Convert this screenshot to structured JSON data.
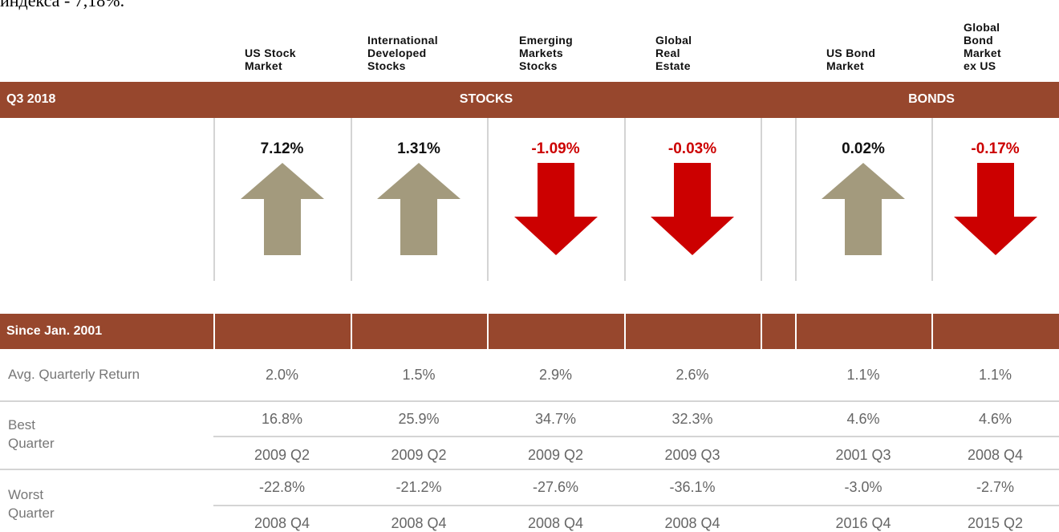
{
  "intro_text": "индекса - 7,18%.",
  "q3_section": {
    "label": "Q3 2018",
    "stocks": "STOCKS",
    "bonds": "BONDS"
  },
  "since_section": {
    "label": "Since Jan. 2001"
  },
  "row_labels": {
    "avg": "Avg. Quarterly Return",
    "best": [
      "Best",
      "Quarter"
    ],
    "worst": [
      "Worst",
      "Quarter"
    ]
  },
  "colors": {
    "header_bar": "#97472d",
    "up": "#a39a7d",
    "down": "#cc0000"
  },
  "columns": [
    {
      "header": [
        "US Stock",
        "Market"
      ],
      "q3": "7.12%",
      "avg": "2.0%",
      "best": "16.8%",
      "best_quarter": "2009 Q2",
      "worst": "-22.8%",
      "worst_quarter": "2008 Q4"
    },
    {
      "header": [
        "International",
        "Developed",
        "Stocks"
      ],
      "q3": "1.31%",
      "avg": "1.5%",
      "best": "25.9%",
      "best_quarter": "2009 Q2",
      "worst": "-21.2%",
      "worst_quarter": "2008 Q4"
    },
    {
      "header": [
        "Emerging",
        "Markets",
        "Stocks"
      ],
      "q3": "-1.09%",
      "avg": "2.9%",
      "best": "34.7%",
      "best_quarter": "2009 Q2",
      "worst": "-27.6%",
      "worst_quarter": "2008 Q4"
    },
    {
      "header": [
        "Global",
        "Real",
        "Estate"
      ],
      "q3": "-0.03%",
      "avg": "2.6%",
      "best": "32.3%",
      "best_quarter": "2009 Q3",
      "worst": "-36.1%",
      "worst_quarter": "2008 Q4"
    },
    {
      "header": [
        "US Bond",
        "Market"
      ],
      "q3": "0.02%",
      "avg": "1.1%",
      "best": "4.6%",
      "best_quarter": "2001 Q3",
      "worst": "-3.0%",
      "worst_quarter": "2016 Q4"
    },
    {
      "header": [
        "Global",
        "Bond",
        "Market",
        "ex US"
      ],
      "q3": "-0.17%",
      "avg": "1.1%",
      "best": "4.6%",
      "best_quarter": "2008 Q4",
      "worst": "-2.7%",
      "worst_quarter": "2015 Q2"
    }
  ]
}
